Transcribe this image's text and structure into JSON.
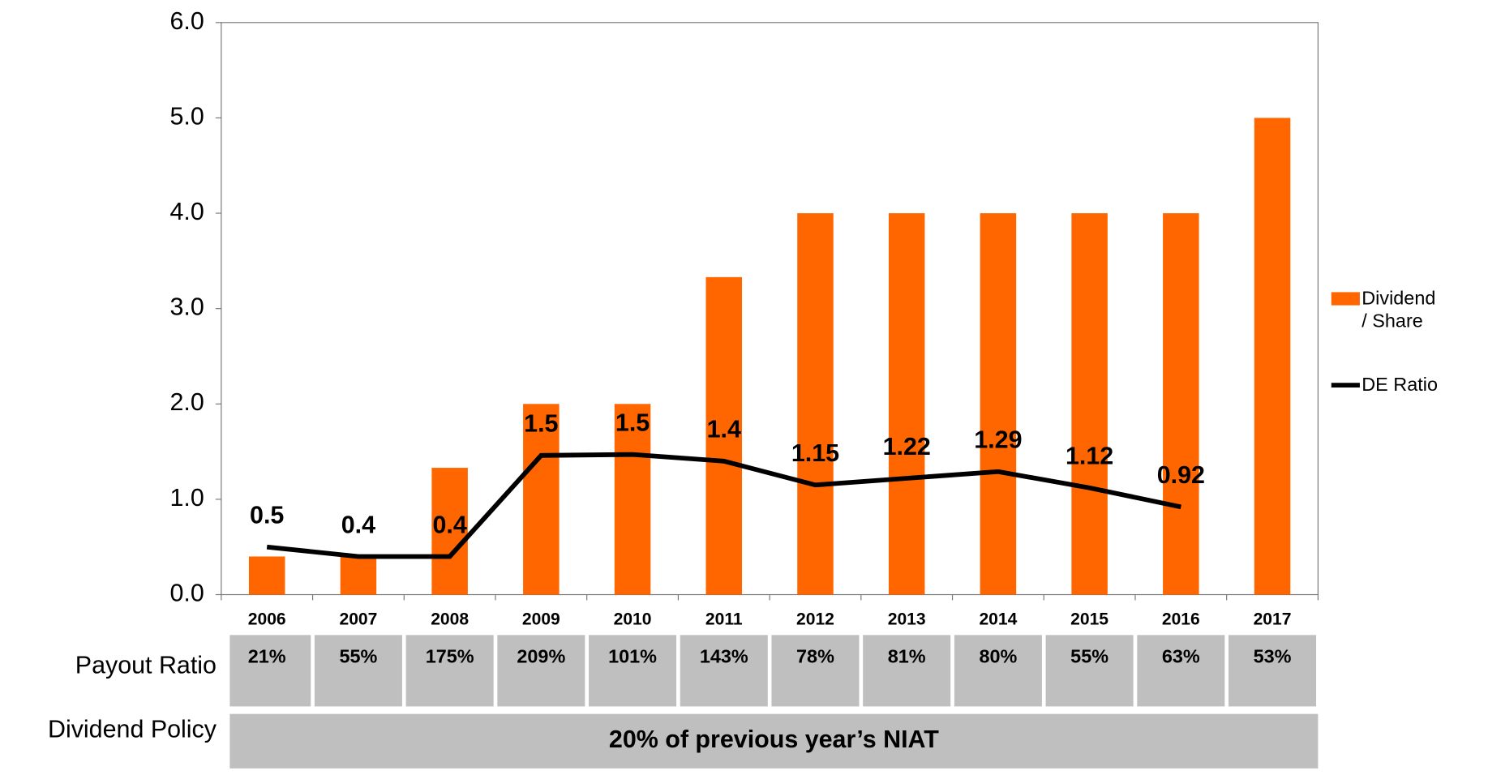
{
  "chart_data": {
    "type": "bar_line",
    "categories": [
      "2006",
      "2007",
      "2008",
      "2009",
      "2010",
      "2011",
      "2012",
      "2013",
      "2014",
      "2015",
      "2016",
      "2017"
    ],
    "series": [
      {
        "name": "Dividend / Share",
        "color": "#ff6600",
        "kind": "bar",
        "values": [
          0.4,
          0.4,
          1.33,
          2,
          2,
          3.33,
          4,
          4,
          4,
          4,
          4,
          5
        ]
      },
      {
        "name": "DE Ratio",
        "color": "#000000",
        "kind": "line",
        "values": [
          0.5,
          0.4,
          0.4,
          1.46,
          1.47,
          1.4,
          1.15,
          1.22,
          1.29,
          1.12,
          0.92,
          null
        ],
        "value_labels": [
          "0.5",
          "0.4",
          "0.4",
          "1.5",
          "1.5",
          "1.4",
          "1.15",
          "1.22",
          "1.29",
          "1.12",
          "0.92",
          null
        ]
      }
    ],
    "ylim": [
      0,
      6
    ],
    "yticks": [
      {
        "value": 0,
        "label": "0.0"
      },
      {
        "value": 1,
        "label": "1.0"
      },
      {
        "value": 2,
        "label": "2.0"
      },
      {
        "value": 3,
        "label": "3.0"
      },
      {
        "value": 4,
        "label": "4.0"
      },
      {
        "value": 5,
        "label": "5.0"
      },
      {
        "value": 6,
        "label": "6.0"
      }
    ],
    "legend": "right"
  },
  "table": {
    "payout_ratio": {
      "label": "Payout Ratio",
      "values": [
        "21%",
        "55%",
        "175%",
        "209%",
        "101%",
        "143%",
        "78%",
        "81%",
        "80%",
        "55%",
        "63%",
        "53%"
      ]
    },
    "dividend_policy": {
      "label": "Dividend Policy",
      "text": "20% of previous year’s NIAT"
    }
  }
}
